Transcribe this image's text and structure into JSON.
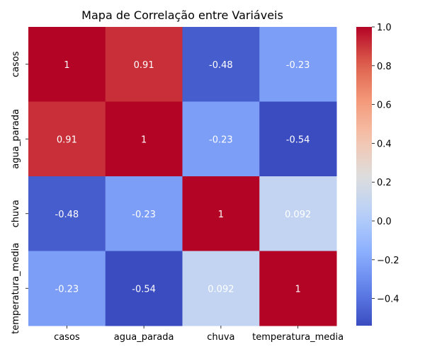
{
  "chart_data": {
    "type": "heatmap",
    "title": "Mapa de Correlação entre Variáveis",
    "x_categories": [
      "casos",
      "agua_parada",
      "chuva",
      "temperatura_media"
    ],
    "y_categories": [
      "casos",
      "agua_parada",
      "chuva",
      "temperatura_media"
    ],
    "values": [
      [
        1,
        0.91,
        -0.48,
        -0.23
      ],
      [
        0.91,
        1,
        -0.23,
        -0.54
      ],
      [
        -0.48,
        -0.23,
        1,
        0.092
      ],
      [
        -0.23,
        -0.54,
        0.092,
        1
      ]
    ],
    "cell_labels": [
      [
        "1",
        "0.91",
        "-0.48",
        "-0.23"
      ],
      [
        "0.91",
        "1",
        "-0.23",
        "-0.54"
      ],
      [
        "-0.48",
        "-0.23",
        "1",
        "0.092"
      ],
      [
        "-0.23",
        "-0.54",
        "0.092",
        "1"
      ]
    ],
    "colormap": "coolwarm",
    "colorbar": {
      "range": [
        -0.54,
        1.0
      ],
      "ticks": [
        -0.4,
        -0.2,
        0.0,
        0.2,
        0.4,
        0.6,
        0.8,
        1.0
      ],
      "tick_labels": [
        "−0.4",
        "−0.2",
        "0.0",
        "0.2",
        "0.4",
        "0.6",
        "0.8",
        "1.0"
      ]
    }
  }
}
